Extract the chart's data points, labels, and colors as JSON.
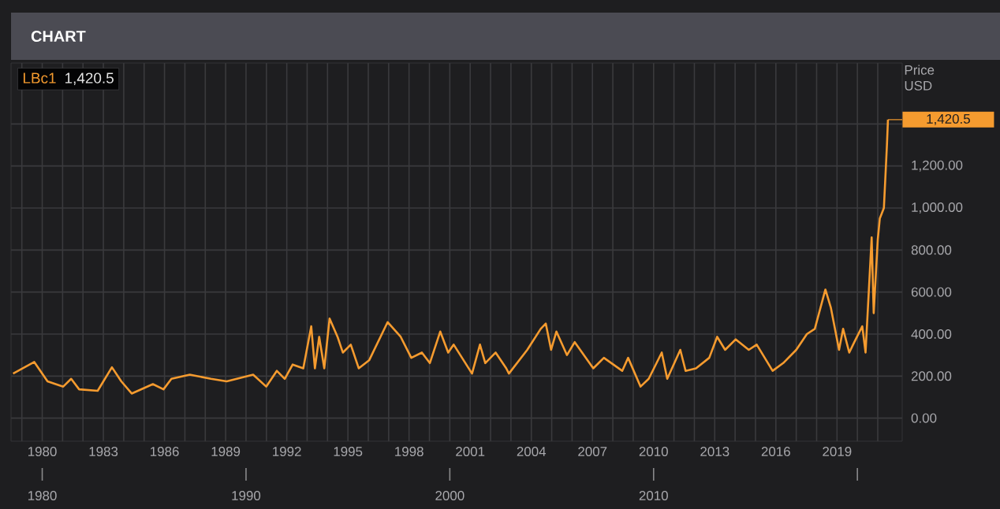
{
  "chart_data": {
    "type": "line",
    "title": "CHART",
    "ylabel": "Price USD",
    "x": [
      1978.57,
      1979.61,
      1980.26,
      1981.03,
      1981.42,
      1981.81,
      1982.72,
      1983.42,
      1983.88,
      1984.39,
      1985.43,
      1985.95,
      1986.34,
      1987.24,
      1988.28,
      1989.05,
      1990.35,
      1990.99,
      1991.51,
      1991.9,
      1992.29,
      1992.81,
      1993.2,
      1993.38,
      1993.59,
      1993.84,
      1994.1,
      1994.49,
      1994.75,
      1995.14,
      1995.53,
      1996.04,
      1996.95,
      1997.59,
      1998.11,
      1998.63,
      1999.02,
      1999.53,
      1999.92,
      2000.19,
      2001.09,
      2001.48,
      2001.74,
      2002.25,
      2002.77,
      2002.9,
      2003.8,
      2004.46,
      2004.71,
      2004.97,
      2005.23,
      2005.75,
      2006.13,
      2007.04,
      2007.56,
      2008.46,
      2008.75,
      2009.36,
      2009.76,
      2010.4,
      2010.67,
      2011.31,
      2011.57,
      2012.08,
      2012.73,
      2013.12,
      2013.51,
      2014.03,
      2014.67,
      2015.06,
      2015.84,
      2016.36,
      2017.0,
      2017.52,
      2017.91,
      2018.43,
      2018.7,
      2019.1,
      2019.3,
      2019.6,
      2019.85,
      2020.24,
      2020.4,
      2020.7,
      2020.8,
      2021.0,
      2021.1,
      2021.3,
      2021.45,
      2021.5
    ],
    "series": [
      {
        "name": "LBc1",
        "color": "#f59b2f",
        "values": [
          212,
          267,
          175,
          150,
          187,
          137,
          130,
          242,
          175,
          117,
          162,
          137,
          187,
          207,
          187,
          175,
          207,
          150,
          225,
          187,
          255,
          237,
          437,
          237,
          387,
          237,
          474,
          387,
          312,
          350,
          237,
          275,
          457,
          387,
          287,
          312,
          262,
          412,
          312,
          350,
          212,
          350,
          262,
          312,
          237,
          212,
          325,
          425,
          450,
          325,
          412,
          300,
          362,
          237,
          287,
          225,
          287,
          150,
          187,
          312,
          187,
          325,
          225,
          237,
          287,
          387,
          325,
          375,
          325,
          350,
          225,
          262,
          325,
          400,
          425,
          612,
          525,
          325,
          425,
          312,
          362,
          437,
          312,
          860,
          500,
          850,
          950,
          1000,
          1300,
          1420.5
        ]
      }
    ],
    "xlim": [
      1978.47,
      2022.2
    ],
    "xticks": [
      {
        "value": 1979,
        "label": null
      },
      1980,
      {
        "value": 1981,
        "label": null
      },
      {
        "value": 1982,
        "label": null
      },
      1983,
      {
        "value": 1984,
        "label": null
      },
      {
        "value": 1985,
        "label": null
      },
      1986,
      {
        "value": 1987,
        "label": null
      },
      {
        "value": 1988,
        "label": null
      },
      1989,
      {
        "value": 1990,
        "label": null
      },
      {
        "value": 1991,
        "label": null
      },
      1992,
      {
        "value": 1993,
        "label": null
      },
      {
        "value": 1994,
        "label": null
      },
      1995,
      {
        "value": 1996,
        "label": null
      },
      {
        "value": 1997,
        "label": null
      },
      1998,
      {
        "value": 1999,
        "label": null
      },
      {
        "value": 2000,
        "label": null
      },
      2001,
      {
        "value": 2002,
        "label": null
      },
      {
        "value": 2003,
        "label": null
      },
      2004,
      {
        "value": 2005,
        "label": null
      },
      {
        "value": 2006,
        "label": null
      },
      2007,
      {
        "value": 2008,
        "label": null
      },
      {
        "value": 2009,
        "label": null
      },
      2010,
      {
        "value": 2011,
        "label": null
      },
      {
        "value": 2012,
        "label": null
      },
      2013,
      {
        "value": 2014,
        "label": null
      },
      {
        "value": 2015,
        "label": null
      },
      2016,
      {
        "value": 2017,
        "label": null
      },
      {
        "value": 2018,
        "label": null
      },
      2019,
      {
        "value": 2020,
        "label": null
      },
      {
        "value": 2021,
        "label": null
      }
    ],
    "x2lim": [
      1978.47,
      2022.2
    ],
    "x2ticks": [
      1980,
      1990,
      2000,
      2010,
      {
        "value": 2020,
        "label": null
      }
    ],
    "ylim": [
      -110,
      1690
    ],
    "yticks": [
      {
        "value": 0,
        "label": "0.00"
      },
      {
        "value": 200,
        "label": "200.00"
      },
      {
        "value": 400,
        "label": "400.00"
      },
      {
        "value": 600,
        "label": "600.00"
      },
      {
        "value": 800,
        "label": "800.00"
      },
      {
        "value": 1000,
        "label": "1,000.00"
      },
      {
        "value": 1200,
        "label": "1,200.00"
      },
      {
        "value": 1400,
        "label": null
      }
    ],
    "grid": true,
    "legend": "top left",
    "marker": "none",
    "line_style": "solid",
    "annotations": [
      {
        "text": "1,420.5",
        "x": 2021.5,
        "y": 1420.5
      },
      "1,420.5"
    ]
  }
}
